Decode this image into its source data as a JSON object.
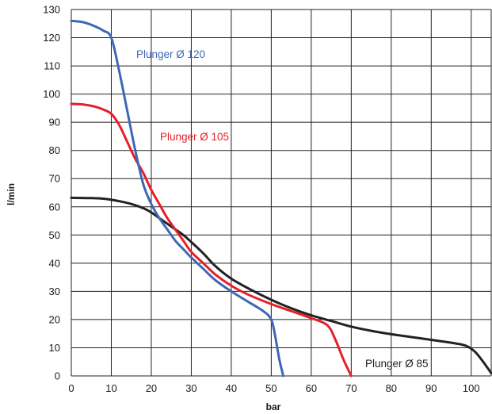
{
  "chart_data": {
    "type": "line",
    "title": "",
    "xlabel": "bar",
    "ylabel": "l/min",
    "xlim": [
      0,
      105
    ],
    "ylim": [
      0,
      130
    ],
    "xticks": [
      0,
      10,
      20,
      30,
      40,
      50,
      60,
      70,
      80,
      90,
      100
    ],
    "yticks": [
      0,
      10,
      20,
      30,
      40,
      50,
      60,
      70,
      80,
      90,
      100,
      110,
      120,
      130
    ],
    "grid": true,
    "legend": "none",
    "series": [
      {
        "name": "Plunger Ø 120",
        "color": "#3f68b3",
        "x": [
          0,
          3,
          6,
          8,
          10,
          12,
          14,
          16,
          18,
          20,
          22,
          24,
          26,
          28,
          30,
          33,
          36,
          40,
          44,
          48,
          50,
          51,
          52,
          53
        ],
        "y": [
          126,
          125.5,
          124,
          122.5,
          120,
          108,
          94,
          80,
          68,
          61,
          56,
          52,
          48,
          45,
          42,
          38,
          34,
          30,
          26.5,
          23,
          20,
          14,
          6,
          0
        ]
      },
      {
        "name": "Plunger Ø 105",
        "color": "#e5202a",
        "x": [
          0,
          3,
          6,
          8,
          10,
          12,
          14,
          16,
          18,
          20,
          22,
          24,
          26,
          28,
          30,
          33,
          36,
          40,
          44,
          50,
          55,
          60,
          64,
          66,
          68,
          70
        ],
        "y": [
          96.5,
          96.3,
          95.5,
          94.5,
          93,
          89,
          83,
          77,
          72,
          66,
          61,
          56,
          52,
          48,
          44,
          40,
          36,
          32,
          29,
          25.5,
          23,
          20.5,
          18,
          13,
          6,
          0
        ]
      },
      {
        "name": "Plunger Ø 85",
        "color": "#222222",
        "x": [
          0,
          5,
          8,
          10,
          12,
          15,
          18,
          20,
          22,
          25,
          28,
          30,
          33,
          36,
          40,
          45,
          50,
          55,
          60,
          65,
          70,
          75,
          80,
          85,
          90,
          94,
          97,
          99,
          101,
          103,
          105
        ],
        "y": [
          63.2,
          63.1,
          62.9,
          62.5,
          62,
          61,
          59.5,
          58,
          56,
          53,
          50,
          47.5,
          43.5,
          39,
          34.5,
          30.5,
          27,
          24,
          21.5,
          19.5,
          17.5,
          16,
          14.8,
          13.8,
          12.8,
          12,
          11.3,
          10.5,
          8.5,
          5,
          1
        ]
      }
    ]
  },
  "labels": {
    "series_120": "Plunger Ø 120",
    "series_105": "Plunger Ø 105",
    "series_85": "Plunger Ø 85"
  }
}
